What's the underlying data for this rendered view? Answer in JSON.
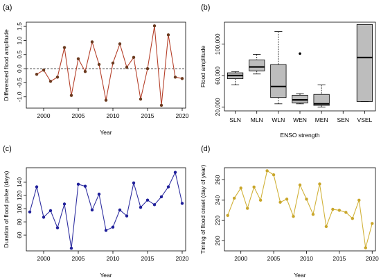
{
  "chart_data": [
    {
      "panel": "(a)",
      "type": "line",
      "xlabel": "Year",
      "ylabel": "Differenced flood amplitude",
      "xlim": [
        1997.5,
        2020.5
      ],
      "ylim": [
        -1.4,
        1.65
      ],
      "xticks": [
        2000,
        2005,
        2010,
        2015,
        2020
      ],
      "yticks": [
        -1.0,
        -0.5,
        0.0,
        0.5,
        1.0,
        1.5
      ],
      "ytick_labels": [
        "-1.0",
        "-0.5",
        "0.0",
        "0.5",
        "1.0",
        "1.5"
      ],
      "reference_line_y": 0,
      "line_color": "#b5402a",
      "marker_color": "#6b3a1f",
      "x": [
        1999,
        2000,
        2001,
        2002,
        2003,
        2004,
        2005,
        2006,
        2007,
        2008,
        2009,
        2010,
        2011,
        2012,
        2013,
        2014,
        2015,
        2016,
        2017,
        2018,
        2019,
        2020
      ],
      "y": [
        -0.2,
        -0.05,
        -0.45,
        -0.3,
        0.75,
        -0.95,
        0.35,
        -0.1,
        0.95,
        0.15,
        -1.12,
        0.2,
        0.88,
        0.05,
        0.4,
        -1.08,
        0.0,
        1.52,
        -1.3,
        1.2,
        -0.3,
        -0.35
      ]
    },
    {
      "panel": "(b)",
      "type": "box",
      "xlabel": "ENSO strength",
      "ylabel": "Flood amplitude",
      "categories": [
        "SLN",
        "MLN",
        "WLN",
        "WEN",
        "MEN",
        "SEN",
        "VSEL"
      ],
      "ylim": [
        15000,
        128000
      ],
      "yticks": [
        20000,
        60000,
        100000
      ],
      "ytick_labels": [
        "20,000",
        "60,000",
        "100,000"
      ],
      "box_fill": "#bdbdbd",
      "boxes": [
        {
          "min": 48000,
          "q1": 56000,
          "median": 60000,
          "q3": 63500,
          "max": 65000
        },
        {
          "min": 62000,
          "q1": 66000,
          "median": 71000,
          "q3": 80000,
          "max": 87000
        },
        {
          "min": 24000,
          "q1": 32000,
          "median": 46000,
          "q3": 74000,
          "max": 116000
        },
        {
          "min": 24000,
          "q1": 25000,
          "median": 29000,
          "q3": 35000,
          "max": 37000,
          "outliers": [
            88000
          ]
        },
        {
          "min": 20000,
          "q1": 22000,
          "median": 24000,
          "q3": 36000,
          "max": 48000
        },
        null,
        {
          "min": 27000,
          "q1": 27000,
          "median": 83000,
          "q3": 125000,
          "max": 125000
        }
      ]
    },
    {
      "panel": "(c)",
      "type": "line",
      "xlabel": "Year",
      "ylabel": "Duration of flood pulse (days)",
      "xlim": [
        1997.5,
        2020.5
      ],
      "ylim": [
        36,
        162
      ],
      "xticks": [
        2000,
        2005,
        2010,
        2015,
        2020
      ],
      "yticks": [
        60,
        80,
        100,
        120,
        140
      ],
      "ytick_labels": [
        "60",
        "80",
        "100",
        "120",
        "140"
      ],
      "line_color": "#2f2fa0",
      "marker_color": "#1f1f9a",
      "x": [
        1998,
        1999,
        2000,
        2001,
        2002,
        2003,
        2004,
        2005,
        2006,
        2007,
        2008,
        2009,
        2010,
        2011,
        2012,
        2013,
        2014,
        2015,
        2016,
        2017,
        2018,
        2019,
        2020
      ],
      "y": [
        95,
        133,
        87,
        97,
        71,
        107,
        40,
        137,
        134,
        98,
        122,
        67,
        72,
        98,
        89,
        139,
        102,
        113,
        106,
        118,
        133,
        155,
        108
      ]
    },
    {
      "panel": "(d)",
      "type": "line",
      "xlabel": "Year",
      "ylabel": "Timing of flood onset (day of year)",
      "xlim": [
        1997.5,
        2020.5
      ],
      "ylim": [
        190,
        272
      ],
      "xticks": [
        2000,
        2005,
        2010,
        2015,
        2020
      ],
      "yticks": [
        200,
        220,
        240,
        260
      ],
      "ytick_labels": [
        "200",
        "220",
        "240",
        "260"
      ],
      "line_color": "#d1b23a",
      "marker_color": "#c9a62a",
      "x": [
        1998,
        1999,
        2000,
        2001,
        2002,
        2003,
        2004,
        2005,
        2006,
        2007,
        2008,
        2009,
        2010,
        2011,
        2012,
        2013,
        2014,
        2015,
        2016,
        2017,
        2018,
        2019,
        2020
      ],
      "y": [
        225,
        242,
        252,
        232,
        253,
        240,
        269,
        265,
        238,
        241,
        224,
        255,
        241,
        226,
        256,
        214,
        231,
        230,
        228,
        222,
        240,
        193,
        217
      ]
    }
  ]
}
